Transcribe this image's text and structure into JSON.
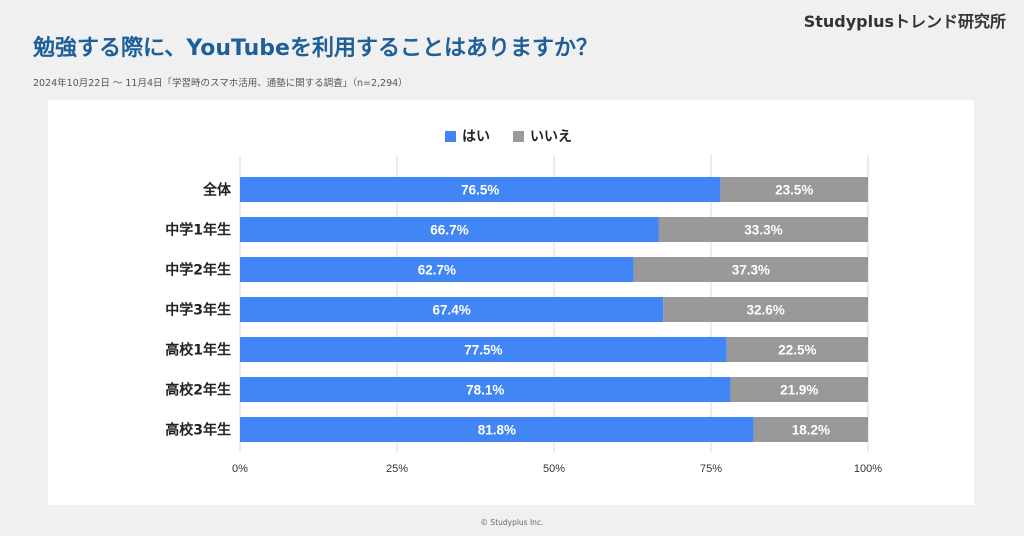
{
  "header": {
    "brand": "Studyplusトレンド研究所",
    "title": "勉強する際に、YouTubeを利用することはありますか？",
    "subtitle": "2024年10月22日 〜 11月4日「学習時のスマホ活用、通塾に関する調査」（n=2,294）"
  },
  "footer": {
    "copyright": "© Studyplus Inc."
  },
  "colors": {
    "yes": "#4285f4",
    "no": "#999999",
    "grid": "#d9d9d9",
    "text": "#222222"
  },
  "chart_data": {
    "type": "bar",
    "orientation": "horizontal",
    "stacked": true,
    "categories": [
      "全体",
      "中学1年生",
      "中学2年生",
      "中学3年生",
      "高校1年生",
      "高校2年生",
      "高校3年生"
    ],
    "series": [
      {
        "name": "はい",
        "values": [
          76.5,
          66.7,
          62.7,
          67.4,
          77.5,
          78.1,
          81.8
        ]
      },
      {
        "name": "いいえ",
        "values": [
          23.5,
          33.3,
          37.3,
          32.6,
          22.5,
          21.9,
          18.2
        ]
      }
    ],
    "xlim": [
      0,
      100
    ],
    "xticks": [
      "0%",
      "25%",
      "50%",
      "75%",
      "100%"
    ],
    "legend_position": "top",
    "grid": true
  }
}
